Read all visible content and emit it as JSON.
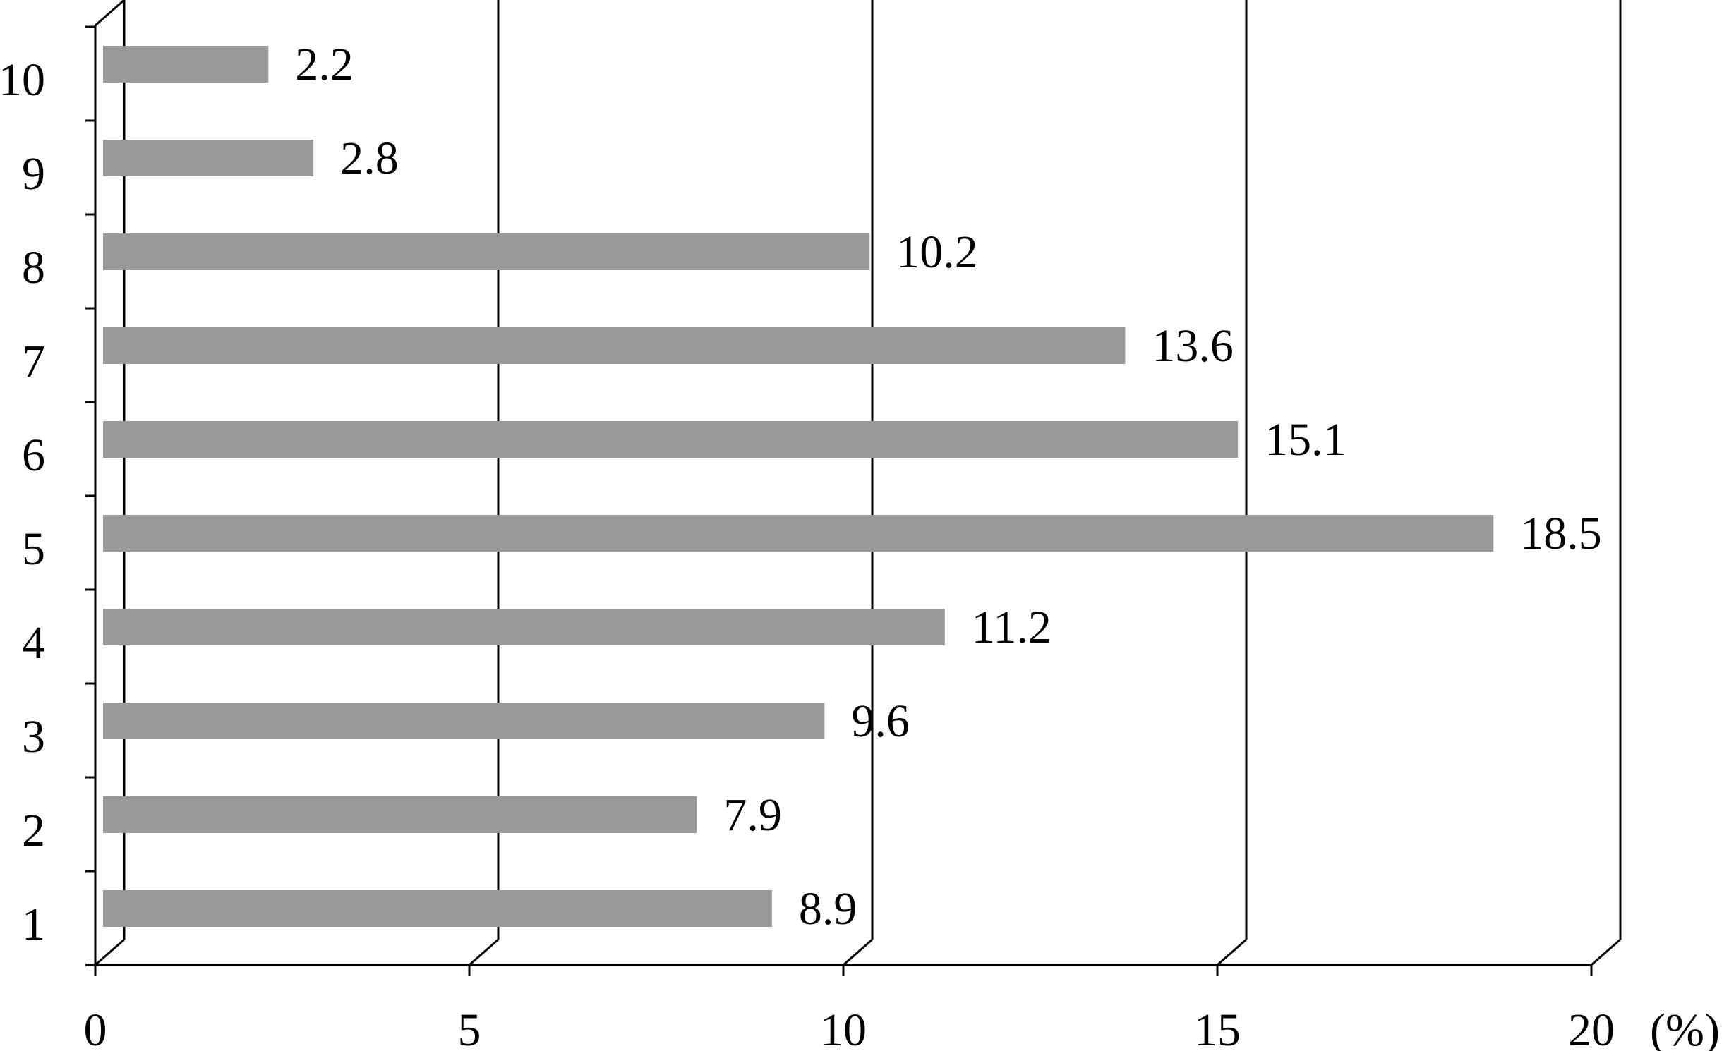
{
  "chart_data": {
    "type": "bar",
    "orientation": "horizontal",
    "categories": [
      "1",
      "2",
      "3",
      "4",
      "5",
      "6",
      "7",
      "8",
      "9",
      "10"
    ],
    "values": [
      8.9,
      7.9,
      9.6,
      11.2,
      18.5,
      15.1,
      13.6,
      10.2,
      2.8,
      2.2
    ],
    "value_labels": [
      "8.9",
      "7.9",
      "9.6",
      "11.2",
      "18.5",
      "15.1",
      "13.6",
      "10.2",
      "2.8",
      "2.2"
    ],
    "x_ticks": [
      "0",
      "5",
      "10",
      "15",
      "20"
    ],
    "x_unit": "(%)",
    "xlim": [
      0,
      20
    ],
    "grid": true,
    "style": "3d-perspective",
    "bar_color": "#999999"
  }
}
